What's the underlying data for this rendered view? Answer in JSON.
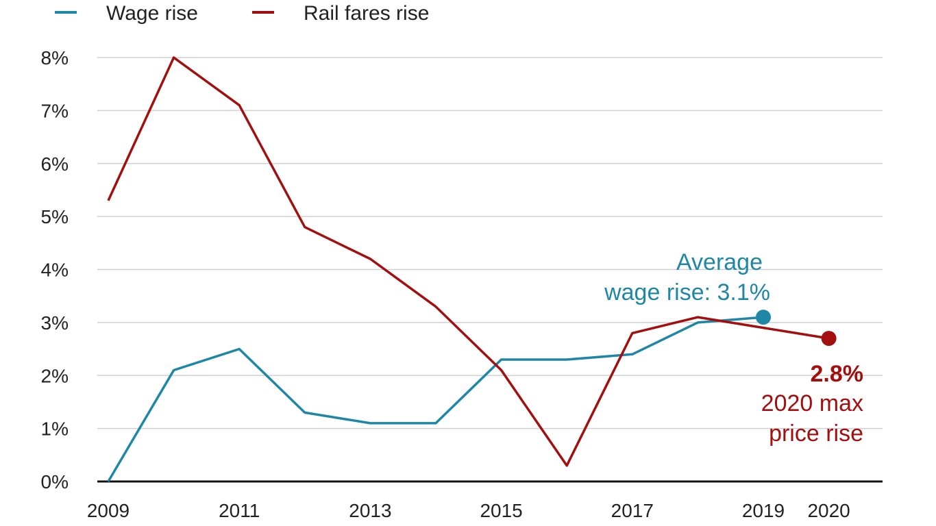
{
  "chart_data": {
    "type": "line",
    "x": [
      "2009",
      "2010",
      "2011",
      "2012",
      "2013",
      "2014",
      "2015",
      "2016",
      "2017",
      "2018",
      "2019",
      "2020"
    ],
    "x_tick_labels": [
      "2009",
      "2011",
      "2013",
      "2015",
      "2017",
      "2019",
      "2020"
    ],
    "y_tick_labels": [
      "0%",
      "1%",
      "2%",
      "3%",
      "4%",
      "5%",
      "6%",
      "7%",
      "8%"
    ],
    "ylim": [
      0,
      8
    ],
    "grid": true,
    "legend_position": "top-left",
    "series": [
      {
        "name": "Wage rise",
        "color": "#1f87a6",
        "values": [
          0.0,
          2.1,
          2.5,
          1.3,
          1.1,
          1.1,
          2.3,
          2.3,
          2.4,
          3.0,
          3.1,
          null
        ]
      },
      {
        "name": "Rail fares rise",
        "color": "#a30f0f",
        "values": [
          5.3,
          8.0,
          7.1,
          4.8,
          4.2,
          3.3,
          2.1,
          0.3,
          2.8,
          3.1,
          2.9,
          2.7
        ]
      }
    ],
    "annotations": {
      "wage_line1": "Average",
      "wage_line2": "wage rise: 3.1%",
      "rail_value": "2.8%",
      "rail_line1": "2020 max",
      "rail_line2": "price rise"
    }
  }
}
